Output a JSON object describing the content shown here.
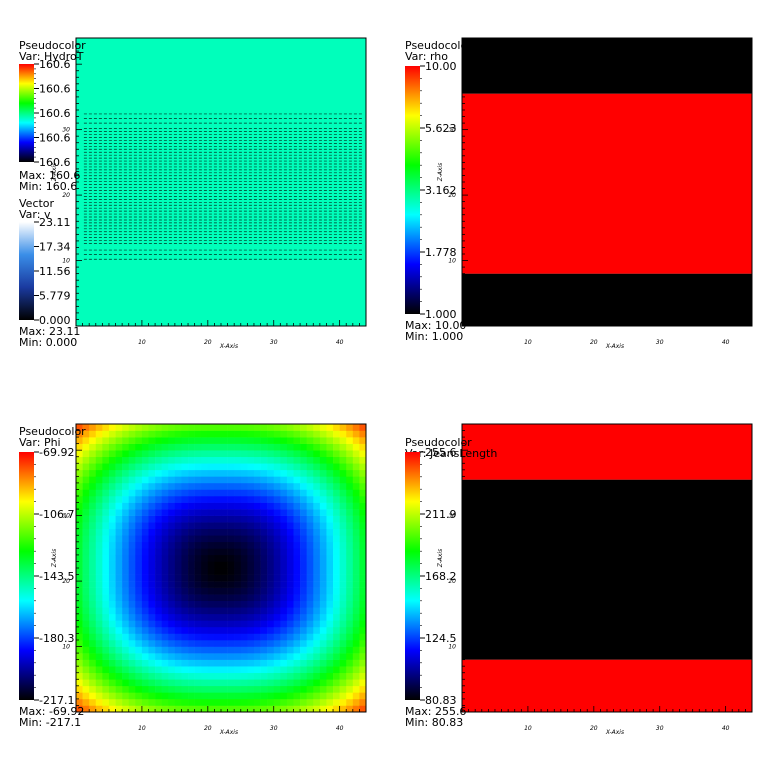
{
  "colors": {
    "hot_desaturated": [
      "#000000",
      "#0000ff",
      "#00ffff",
      "#00ff00",
      "#ffff00",
      "#ff0000"
    ],
    "vector_map": [
      "#000000",
      "#1a3aa0",
      "#3a8ee8",
      "#ffffff"
    ],
    "phi_map": [
      "#000000",
      "#0000ff",
      "#00ffff",
      "#00ff00",
      "#ffff00",
      "#ff0000"
    ],
    "hydro_fill": "#00ffbb",
    "contour_line": "#000000"
  },
  "chart_data": [
    {
      "type": "heatmap",
      "plot_type_label": "Pseudocolor",
      "var_label": "Var: HydroT",
      "legend_ticks": [
        "160.6",
        "160.6",
        "160.6",
        "160.6",
        "160.6"
      ],
      "max_label": "Max: 160.6",
      "min_label": "Min: 160.6",
      "overlay": {
        "type": "vector",
        "plot_type_label": "Vector",
        "var_label": "Var: v",
        "legend_ticks": [
          "23.11",
          "17.34",
          "11.56",
          "5.779",
          "0.000"
        ],
        "max_label": "Max: 23.11",
        "min_label": "Min: 0.000",
        "dashed_rows_z": [
          10.2,
          10.9,
          11.6,
          31.0,
          31.7,
          32.4
        ]
      },
      "xlabel": "X-Axis",
      "ylabel": "Z-Axis",
      "x_ticks": [
        "10",
        "20",
        "30",
        "40"
      ],
      "y_ticks": [
        "10",
        "20",
        "30"
      ],
      "xlim": [
        0,
        44
      ],
      "ylim": [
        0,
        44
      ],
      "field": "uniform"
    },
    {
      "type": "heatmap",
      "plot_type_label": "Pseudocolor",
      "var_label": "Var: rho",
      "legend_ticks": [
        "10.00",
        "5.623",
        "3.162",
        "1.778",
        "1.000"
      ],
      "max_label": "Max: 10.00",
      "min_label": "Min: 1.000",
      "log_scale": true,
      "xlabel": "X-Axis",
      "ylabel": "Z-Axis",
      "x_ticks": [
        "10",
        "20",
        "30",
        "40"
      ],
      "y_ticks": [
        "10",
        "20",
        "30"
      ],
      "xlim": [
        0,
        44
      ],
      "ylim": [
        0,
        44
      ],
      "bands": [
        {
          "z_from": 0,
          "z_to": 8.0,
          "value": 1.0
        },
        {
          "z_from": 8.0,
          "z_to": 35.5,
          "value": 10.0
        },
        {
          "z_from": 35.5,
          "z_to": 44,
          "value": 1.0
        }
      ]
    },
    {
      "type": "heatmap",
      "plot_type_label": "Pseudocolor",
      "var_label": "Var: Phi",
      "legend_ticks": [
        "-69.92",
        "-106.7",
        "-143.5",
        "-180.3",
        "-217.1"
      ],
      "max_label": "Max: -69.92",
      "min_label": "Min: -217.1",
      "xlabel": "X-Axis",
      "ylabel": "Z-Axis",
      "x_ticks": [
        "10",
        "20",
        "30",
        "40"
      ],
      "y_ticks": [
        "10",
        "20",
        "30"
      ],
      "xlim": [
        0,
        44
      ],
      "ylim": [
        0,
        44
      ],
      "field": "potential_well",
      "center": [
        22,
        22
      ],
      "min": -217.1,
      "max": -69.92
    },
    {
      "type": "heatmap",
      "plot_type_label": "Pseudocolor",
      "var_label": "Var: JeansLength",
      "legend_ticks": [
        "255.6",
        "211.9",
        "168.2",
        "124.5",
        "80.83"
      ],
      "max_label": "Max: 255.6",
      "min_label": "Min: 80.83",
      "xlabel": "X-Axis",
      "ylabel": "Z-Axis",
      "x_ticks": [
        "10",
        "20",
        "30",
        "40"
      ],
      "y_ticks": [
        "10",
        "20",
        "30"
      ],
      "xlim": [
        0,
        44
      ],
      "ylim": [
        0,
        44
      ],
      "bands": [
        {
          "z_from": 0,
          "z_to": 8.0,
          "value": 255.6
        },
        {
          "z_from": 8.0,
          "z_to": 35.5,
          "value": 80.83
        },
        {
          "z_from": 35.5,
          "z_to": 44,
          "value": 255.6
        }
      ]
    }
  ]
}
